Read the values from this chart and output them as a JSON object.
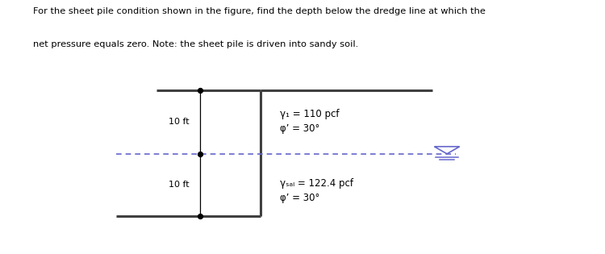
{
  "title_line1": "For the sheet pile condition shown in the figure, find the depth below the dredge line at which the",
  "title_line2": "net pressure equals zero. Note: the sheet pile is driven into sandy soil.",
  "label_10ft_top": "10 ft",
  "label_10ft_bot": "10 ft",
  "gamma1_text": "γ₁ = 110 pcf",
  "phi1_text": "φ’ = 30°",
  "gamma_sat_text": "γₛₐₗ = 122.4 pcf",
  "phi2_text": "φ’ = 30°",
  "bg_color": "#ffffff",
  "pile_color": "#404040",
  "dredge_color": "#6666cc",
  "arrow_color": "#000000",
  "text_color": "#000000",
  "pile_lw": 2.2,
  "dredge_lw": 1.2
}
